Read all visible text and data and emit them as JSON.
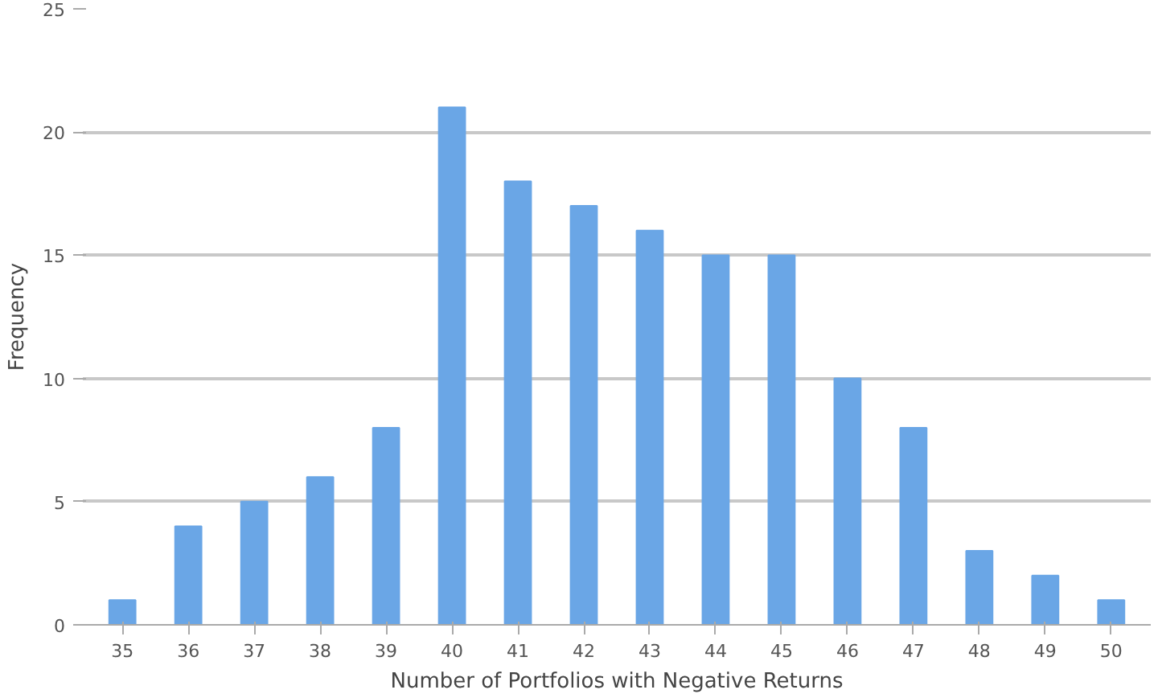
{
  "chart_data": {
    "type": "bar",
    "xlabel": "Number of Portfolios with Negative Returns",
    "ylabel": "Frequency",
    "categories": [
      "35",
      "36",
      "37",
      "38",
      "39",
      "40",
      "41",
      "42",
      "43",
      "44",
      "45",
      "46",
      "47",
      "48",
      "49",
      "50"
    ],
    "values": [
      1,
      4,
      5,
      6,
      8,
      21,
      18,
      17,
      16,
      15,
      15,
      10,
      8,
      3,
      2,
      1
    ],
    "color": "#6aa6e6",
    "ylim": [
      0,
      25
    ],
    "yticks": [
      0,
      5,
      10,
      15,
      20,
      25
    ],
    "grid": "y"
  }
}
